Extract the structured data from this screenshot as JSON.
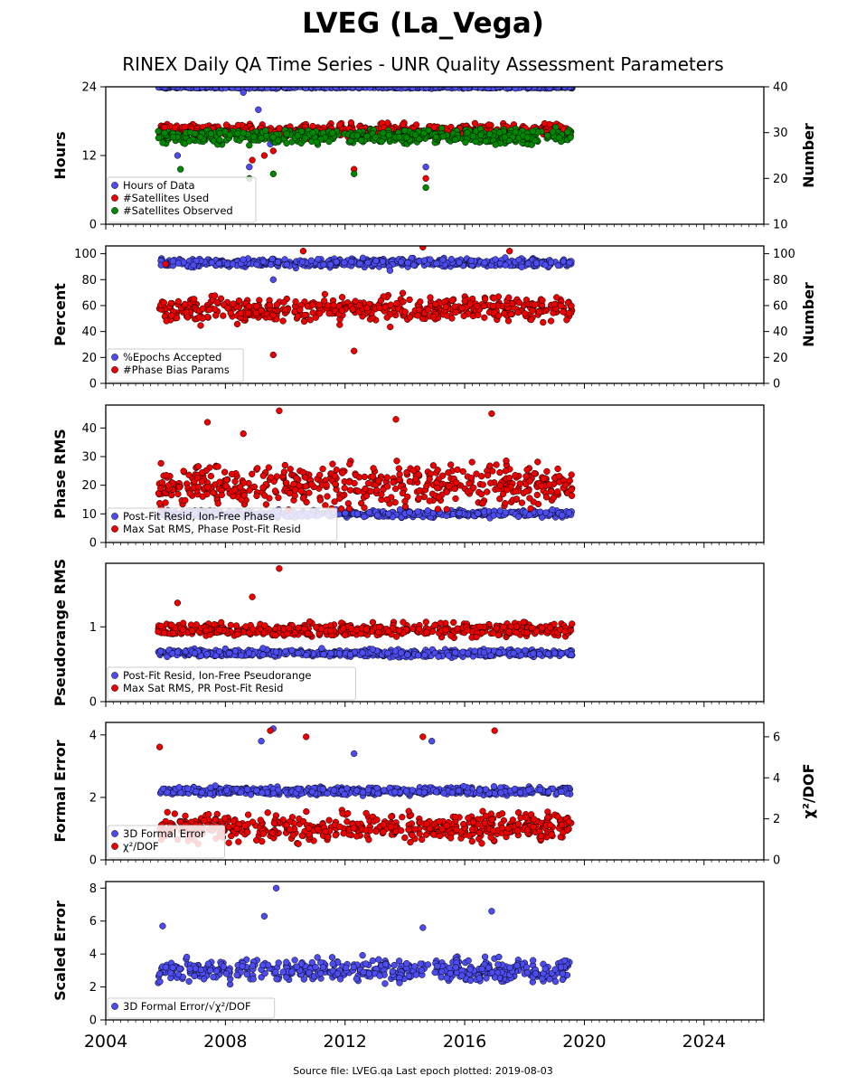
{
  "title": "LVEG (La_Vega)",
  "subtitle": "RINEX Daily QA Time Series - UNR Quality Assessment Parameters",
  "footer": "Source file: LVEG.qa Last epoch plotted: 2019-08-03",
  "colors": {
    "blue": "#4c4cf0",
    "red": "#ee0000",
    "green": "#008800"
  },
  "chart_data": [
    {
      "type": "scatter",
      "ylabel": "Hours",
      "ylim": [
        0,
        24
      ],
      "yticks": [
        "0",
        "12",
        "24"
      ],
      "y2label": "Number",
      "y2lim": [
        10,
        40
      ],
      "y2ticks": [
        "10",
        "20",
        "30",
        "40"
      ],
      "xlim": [
        2004.0,
        2026.0
      ],
      "x_data_range": [
        2005.75,
        2019.59
      ],
      "legend": "lower-left",
      "series": [
        {
          "name": "Hours of Data",
          "color": "#4c4cf0",
          "axis": "left",
          "typical": 23.9,
          "spread": 0.15,
          "outliers": [
            [
              2006.4,
              12
            ],
            [
              2008.8,
              10
            ],
            [
              2009.1,
              20
            ],
            [
              2009.5,
              14
            ],
            [
              2014.7,
              10
            ],
            [
              2008.6,
              23
            ]
          ]
        },
        {
          "name": "#Satellites Used",
          "color": "#ee0000",
          "axis": "right",
          "typical": 30.5,
          "spread": 1.2,
          "outliers": [
            [
              2008.9,
              24
            ],
            [
              2009.3,
              25
            ],
            [
              2009.6,
              26
            ],
            [
              2012.3,
              22
            ],
            [
              2014.7,
              20
            ]
          ]
        },
        {
          "name": "#Satellites Observed",
          "color": "#008800",
          "axis": "right",
          "typical": 29.2,
          "spread": 1.3,
          "outliers": [
            [
              2006.5,
              22
            ],
            [
              2008.8,
              20
            ],
            [
              2009.6,
              21
            ],
            [
              2012.3,
              21
            ],
            [
              2014.7,
              18
            ]
          ]
        }
      ]
    },
    {
      "type": "scatter",
      "ylabel": "Percent",
      "ylim": [
        0,
        106
      ],
      "yticks": [
        "0",
        "20",
        "40",
        "60",
        "80",
        "100"
      ],
      "y2label": "Number",
      "y2lim": [
        0,
        106
      ],
      "y2ticks": [
        "0",
        "20",
        "40",
        "60",
        "80",
        "100"
      ],
      "xlim": [
        2004.0,
        2026.0
      ],
      "x_data_range": [
        2005.75,
        2019.59
      ],
      "legend": "lower-left",
      "series": [
        {
          "name": "%Epochs Accepted",
          "color": "#4c4cf0",
          "axis": "left",
          "typical": 93,
          "spread": 2.5,
          "outliers": [
            [
              2009.6,
              80
            ],
            [
              2013.5,
              87
            ]
          ]
        },
        {
          "name": "#Phase Bias Params",
          "color": "#ee0000",
          "axis": "right",
          "typical": 57,
          "spread": 8,
          "outliers": [
            [
              2010.6,
              102
            ],
            [
              2014.6,
              105
            ],
            [
              2009.6,
              22
            ],
            [
              2012.3,
              25
            ],
            [
              2006.0,
              92
            ],
            [
              2017.5,
              102
            ]
          ]
        }
      ]
    },
    {
      "type": "scatter",
      "ylabel": "Phase RMS",
      "ylim": [
        0,
        48
      ],
      "yticks": [
        "0",
        "10",
        "20",
        "30",
        "40"
      ],
      "xlim": [
        2004.0,
        2026.0
      ],
      "x_data_range": [
        2005.75,
        2019.59
      ],
      "legend": "lower-left",
      "series": [
        {
          "name": "Post-Fit Resid, Ion-Free Phase",
          "color": "#4c4cf0",
          "typical": 10,
          "spread": 1,
          "outliers": []
        },
        {
          "name": "Max Sat RMS, Phase Post-Fit Resid",
          "color": "#ee0000",
          "typical": 20,
          "spread": 6,
          "outliers": [
            [
              2009.8,
              46
            ],
            [
              2008.6,
              38
            ],
            [
              2016.9,
              45
            ],
            [
              2013.7,
              43
            ],
            [
              2007.4,
              42
            ]
          ]
        }
      ]
    },
    {
      "type": "scatter",
      "ylabel": "Pseudorange RMS",
      "ylim": [
        0,
        1.85
      ],
      "yticks": [
        "0",
        "1"
      ],
      "xlim": [
        2004.0,
        2026.0
      ],
      "x_data_range": [
        2005.75,
        2019.59
      ],
      "legend": "lower-left",
      "series": [
        {
          "name": "Post-Fit Resid, Ion-Free Pseudorange",
          "color": "#4c4cf0",
          "typical": 0.65,
          "spread": 0.04,
          "outliers": []
        },
        {
          "name": "Max Sat RMS, PR Post-Fit Resid",
          "color": "#ee0000",
          "typical": 0.96,
          "spread": 0.07,
          "outliers": [
            [
              2009.8,
              1.78
            ],
            [
              2008.9,
              1.4
            ],
            [
              2006.4,
              1.32
            ]
          ]
        }
      ]
    },
    {
      "type": "scatter",
      "ylabel": "Formal Error",
      "ylim": [
        0,
        4.4
      ],
      "yticks": [
        "0",
        "2",
        "4"
      ],
      "y2label": "χ²/DOF",
      "y2lim": [
        0,
        6.7
      ],
      "y2ticks": [
        "0",
        "2",
        "4",
        "6"
      ],
      "xlim": [
        2004.0,
        2026.0
      ],
      "x_data_range": [
        2005.75,
        2019.59
      ],
      "legend": "lower-left",
      "series": [
        {
          "name": "3D Formal Error",
          "color": "#4c4cf0",
          "axis": "left",
          "typical": 2.2,
          "spread": 0.1,
          "outliers": [
            [
              2009.6,
              4.2
            ],
            [
              2009.2,
              3.8
            ],
            [
              2014.9,
              3.8
            ],
            [
              2012.3,
              3.4
            ]
          ]
        },
        {
          "name": "χ²/DOF",
          "color": "#ee0000",
          "axis": "right",
          "typical": 1.6,
          "spread": 0.55,
          "outliers": [
            [
              2009.5,
              6.3
            ],
            [
              2010.7,
              6.0
            ],
            [
              2014.6,
              6.0
            ],
            [
              2017.0,
              6.3
            ],
            [
              2005.8,
              5.5
            ]
          ]
        }
      ]
    },
    {
      "type": "scatter",
      "ylabel": "Scaled Error",
      "ylim": [
        0,
        8.4
      ],
      "yticks": [
        "0",
        "2",
        "4",
        "6",
        "8"
      ],
      "xlim": [
        2004.0,
        2026.0
      ],
      "x_data_range": [
        2005.75,
        2019.59
      ],
      "xticks": [
        "2004",
        "2008",
        "2012",
        "2016",
        "2020",
        "2024"
      ],
      "legend": "lower-left",
      "series": [
        {
          "name": "3D Formal Error/√χ²/DOF",
          "color": "#4c4cf0",
          "typical": 3.0,
          "spread": 0.55,
          "outliers": [
            [
              2009.7,
              8.0
            ],
            [
              2009.3,
              6.3
            ],
            [
              2016.9,
              6.6
            ],
            [
              2014.6,
              5.6
            ],
            [
              2005.9,
              5.7
            ]
          ]
        }
      ]
    }
  ]
}
